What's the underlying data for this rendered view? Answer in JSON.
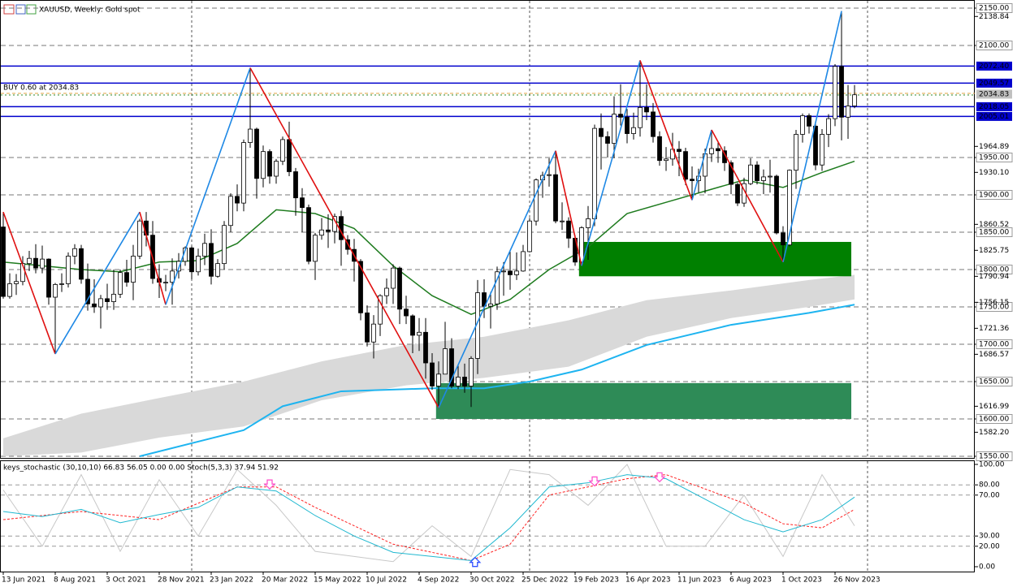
{
  "chart_data": [
    {
      "type": "candlestick",
      "title": "XAUUSD, Weekly:  Gold spot",
      "order_label": "BUY 0.60 at 2034.83",
      "xlim": [
        -0.5,
        149.5
      ],
      "ylim": [
        1550,
        2150
      ],
      "xticks": [
        {
          "value": 0,
          "label": "13 Jun 2021"
        },
        {
          "value": 8,
          "label": "8 Aug 2021"
        },
        {
          "value": 16,
          "label": "3 Oct 2021"
        },
        {
          "value": 24,
          "label": "28 Nov 2021"
        },
        {
          "value": 32,
          "label": "23 Jan 2022"
        },
        {
          "value": 40,
          "label": "20 Mar 2022"
        },
        {
          "value": 48,
          "label": "15 May 2022"
        },
        {
          "value": 56,
          "label": "10 Jul 2022"
        },
        {
          "value": 64,
          "label": "4 Sep 2022"
        },
        {
          "value": 72,
          "label": "30 Oct 2022"
        },
        {
          "value": 80,
          "label": "25 Dec 2022"
        },
        {
          "value": 88,
          "label": "19 Feb 2023"
        },
        {
          "value": 96,
          "label": "16 Apr 2023"
        },
        {
          "value": 104,
          "label": "11 Jun 2023"
        },
        {
          "value": 112,
          "label": "6 Aug 2023"
        },
        {
          "value": 120,
          "label": "1 Oct 2023"
        },
        {
          "value": 128,
          "label": "26 Nov 2023"
        }
      ],
      "yticks": [
        {
          "value": 2150,
          "label": "2150.00"
        },
        {
          "value": 2100,
          "label": "2100.00"
        },
        {
          "value": 1950,
          "label": "1950.00"
        },
        {
          "value": 1900,
          "label": "1900.00"
        },
        {
          "value": 1850,
          "label": "1850.00"
        },
        {
          "value": 1800,
          "label": "1800.00"
        },
        {
          "value": 1750,
          "label": "1750.00"
        },
        {
          "value": 1700,
          "label": "1700.00"
        },
        {
          "value": 1650,
          "label": "1650.00"
        },
        {
          "value": 1600,
          "label": "1600.00"
        },
        {
          "value": 1550,
          "label": "1550.00"
        }
      ],
      "scale_labels": [
        {
          "value": 2138.84,
          "label": "2138.84"
        },
        {
          "value": 1964.89,
          "label": "1964.89"
        },
        {
          "value": 1930.1,
          "label": "1930.10"
        },
        {
          "value": 1860.52,
          "label": "1860.52"
        },
        {
          "value": 1825.75,
          "label": "1825.75"
        },
        {
          "value": 1790.94,
          "label": "1790.94"
        },
        {
          "value": 1756.15,
          "label": "1756.15"
        },
        {
          "value": 1721.36,
          "label": "1721.36"
        },
        {
          "value": 1686.57,
          "label": "1686.57"
        },
        {
          "value": 1616.99,
          "label": "1616.99"
        },
        {
          "value": 1582.2,
          "label": "1582.20"
        }
      ],
      "grid": true,
      "separators": [
        29,
        81,
        133
      ],
      "levels": [
        {
          "value": 2072.4,
          "label": "2072.40",
          "color": "#0000cd"
        },
        {
          "value": 2049.57,
          "label": "2049.57",
          "color": "#0000cd"
        },
        {
          "value": 2018.05,
          "label": "2018.05",
          "color": "#0000cd"
        },
        {
          "value": 2005.01,
          "label": "2005.01",
          "color": "#0000cd"
        }
      ],
      "bid": {
        "value": 2034.83,
        "label": "2034.83",
        "color": "#e0a040"
      },
      "zones": [
        {
          "x": [
            88.6,
            130.5
          ],
          "y": [
            1791,
            1837
          ],
          "color": "#008000"
        },
        {
          "x": [
            66.6,
            130.5
          ],
          "y": [
            1600,
            1648
          ],
          "color": "#2e8b57"
        }
      ],
      "up_color": "#ffffff",
      "down_color": "#000000",
      "open": [
        1857,
        1764,
        1781,
        1784,
        1808,
        1815,
        1802,
        1814,
        1763,
        1780,
        1781,
        1818,
        1828,
        1787,
        1754,
        1750,
        1761,
        1757,
        1767,
        1796,
        1783,
        1818,
        1865,
        1846,
        1788,
        1783,
        1783,
        1798,
        1811,
        1829,
        1797,
        1818,
        1835,
        1791,
        1808,
        1859,
        1898,
        1889,
        1970,
        1988,
        1922,
        1958,
        1925,
        1945,
        1974,
        1931,
        1896,
        1883,
        1811,
        1846,
        1853,
        1851,
        1871,
        1840,
        1827,
        1811,
        1742,
        1703,
        1727,
        1765,
        1775,
        1802,
        1747,
        1738,
        1712,
        1716,
        1675,
        1644,
        1660,
        1694,
        1644,
        1656,
        1644,
        1681,
        1769,
        1751,
        1754,
        1797,
        1798,
        1793,
        1798,
        1824,
        1865,
        1920,
        1926,
        1927,
        1865,
        1865,
        1842,
        1810,
        1856,
        1868,
        1989,
        1978,
        1969,
        2008,
        2004,
        1982,
        1990,
        2017,
        2011,
        1978,
        1946,
        1948,
        1961,
        1958,
        1921,
        1919,
        1925,
        1955,
        1962,
        1959,
        1943,
        1914,
        1889,
        1915,
        1940,
        1919,
        1924,
        1925,
        1849,
        1833,
        1933,
        1981,
        2006,
        1992,
        1940,
        1981,
        2002,
        2072,
        2004,
        2019
      ],
      "high": [
        1877,
        1795,
        1794,
        1818,
        1825,
        1834,
        1832,
        1815,
        1782,
        1795,
        1823,
        1834,
        1833,
        1808,
        1787,
        1766,
        1781,
        1800,
        1800,
        1813,
        1833,
        1868,
        1877,
        1865,
        1807,
        1793,
        1815,
        1822,
        1831,
        1831,
        1828,
        1848,
        1854,
        1814,
        1865,
        1902,
        1914,
        1974,
        2070,
        1990,
        1966,
        1961,
        1948,
        1978,
        1998,
        1936,
        1909,
        1887,
        1849,
        1869,
        1874,
        1875,
        1879,
        1846,
        1841,
        1814,
        1752,
        1739,
        1767,
        1788,
        1807,
        1804,
        1765,
        1740,
        1735,
        1735,
        1688,
        1677,
        1730,
        1708,
        1672,
        1674,
        1684,
        1786,
        1787,
        1770,
        1804,
        1810,
        1824,
        1823,
        1833,
        1869,
        1922,
        1931,
        1949,
        1959,
        1890,
        1870,
        1846,
        1858,
        1885,
        1994,
        2009,
        1985,
        2032,
        2048,
        2015,
        2010,
        2080,
        2048,
        2023,
        1985,
        1964,
        1983,
        1972,
        1963,
        1938,
        1935,
        1962,
        1987,
        1972,
        1965,
        1946,
        1916,
        1923,
        1949,
        1945,
        1934,
        1947,
        1927,
        1858,
        1934,
        1987,
        2009,
        2009,
        1995,
        1988,
        2008,
        2075,
        2146,
        2047,
        2047
      ],
      "low": [
        1761,
        1761,
        1766,
        1779,
        1798,
        1795,
        1795,
        1753,
        1687,
        1770,
        1776,
        1807,
        1781,
        1745,
        1742,
        1721,
        1746,
        1746,
        1762,
        1777,
        1759,
        1814,
        1831,
        1781,
        1762,
        1771,
        1753,
        1788,
        1805,
        1787,
        1792,
        1806,
        1780,
        1789,
        1800,
        1850,
        1878,
        1878,
        1963,
        1895,
        1910,
        1915,
        1915,
        1940,
        1925,
        1872,
        1850,
        1807,
        1786,
        1840,
        1829,
        1835,
        1805,
        1820,
        1784,
        1732,
        1697,
        1681,
        1711,
        1754,
        1754,
        1727,
        1727,
        1688,
        1691,
        1654,
        1639,
        1615,
        1660,
        1641,
        1640,
        1635,
        1616,
        1660,
        1735,
        1721,
        1746,
        1765,
        1773,
        1786,
        1797,
        1823,
        1859,
        1896,
        1911,
        1862,
        1853,
        1829,
        1805,
        1805,
        1813,
        1858,
        1934,
        1950,
        1949,
        1993,
        1969,
        1974,
        1978,
        2000,
        1970,
        1939,
        1932,
        1939,
        1925,
        1913,
        1893,
        1903,
        1902,
        1944,
        1943,
        1932,
        1901,
        1885,
        1884,
        1913,
        1914,
        1901,
        1903,
        1847,
        1810,
        1831,
        1908,
        1970,
        1982,
        1933,
        1932,
        1964,
        1992,
        1973,
        1975,
        2016
      ],
      "close": [
        1764,
        1781,
        1784,
        1808,
        1815,
        1802,
        1814,
        1763,
        1780,
        1781,
        1818,
        1828,
        1787,
        1754,
        1750,
        1761,
        1757,
        1767,
        1796,
        1783,
        1818,
        1865,
        1846,
        1788,
        1783,
        1783,
        1798,
        1811,
        1829,
        1797,
        1818,
        1835,
        1791,
        1808,
        1859,
        1898,
        1889,
        1970,
        1988,
        1922,
        1958,
        1925,
        1945,
        1974,
        1931,
        1896,
        1883,
        1811,
        1846,
        1853,
        1851,
        1871,
        1840,
        1827,
        1811,
        1742,
        1703,
        1727,
        1765,
        1775,
        1802,
        1747,
        1738,
        1712,
        1716,
        1675,
        1644,
        1660,
        1694,
        1644,
        1656,
        1644,
        1681,
        1769,
        1751,
        1754,
        1797,
        1798,
        1793,
        1798,
        1824,
        1865,
        1920,
        1926,
        1927,
        1865,
        1865,
        1842,
        1810,
        1856,
        1868,
        1989,
        1978,
        1969,
        2008,
        2004,
        1982,
        1990,
        2017,
        2011,
        1978,
        1946,
        1948,
        1961,
        1958,
        1921,
        1919,
        1925,
        1955,
        1962,
        1959,
        1943,
        1914,
        1889,
        1915,
        1940,
        1919,
        1924,
        1925,
        1849,
        1833,
        1933,
        1981,
        2006,
        1992,
        1940,
        1981,
        2002,
        2072,
        2004,
        2019,
        2034
      ],
      "band": {
        "color": "#d9d9d9",
        "x": [
          0,
          12,
          24,
          37,
          49,
          62,
          74,
          87,
          99,
          112,
          124,
          131
        ],
        "upper": [
          1574,
          1607,
          1628,
          1650,
          1677,
          1699,
          1710,
          1732,
          1759,
          1772,
          1786,
          1793
        ],
        "lower": [
          1550,
          1555,
          1575,
          1590,
          1625,
          1645,
          1655,
          1670,
          1710,
          1735,
          1750,
          1760
        ]
      },
      "series": [
        {
          "color": "#1e7b1e",
          "width": 1.5,
          "x": [
            0,
            6,
            12,
            18,
            24,
            30,
            36,
            42,
            48,
            54,
            60,
            66,
            72,
            78,
            84,
            90,
            96,
            102,
            108,
            114,
            120,
            126,
            131
          ],
          "values": [
            1810,
            1805,
            1800,
            1797,
            1810,
            1812,
            1835,
            1880,
            1875,
            1855,
            1805,
            1765,
            1740,
            1760,
            1800,
            1830,
            1875,
            1890,
            1905,
            1920,
            1910,
            1930,
            1945
          ]
        },
        {
          "color": "#1eb4f0",
          "width": 2,
          "x": [
            21,
            37,
            43,
            52,
            66,
            74,
            81,
            89,
            99,
            112,
            124,
            131
          ],
          "values": [
            1550,
            1585,
            1617,
            1637,
            1641,
            1641,
            1650,
            1666,
            1699,
            1726,
            1742,
            1753
          ]
        }
      ],
      "zigzag": {
        "up_color": "#1e88e5",
        "down_color": "#e01010",
        "x": [
          0,
          8,
          21,
          25,
          38,
          67,
          85,
          89,
          98,
          106,
          109,
          120,
          129
        ],
        "values": [
          1877,
          1687,
          1877,
          1753,
          2070,
          1615,
          1959,
          1805,
          2080,
          1893,
          1987,
          1810,
          2146
        ]
      }
    },
    {
      "type": "line",
      "title": "keys_stochastic (30,10,10) 66.83 56.05 0.00 0.00 Stoch(5,3,3) 37.94 51.92",
      "xlim": [
        -0.5,
        149.5
      ],
      "ylim": [
        0,
        100
      ],
      "yticks": [
        {
          "value": 100,
          "label": "100.00"
        },
        {
          "value": 80,
          "label": "80.00"
        },
        {
          "value": 70,
          "label": "70.00"
        },
        {
          "value": 30,
          "label": "30.00"
        },
        {
          "value": 20,
          "label": "20.00"
        },
        {
          "value": 0,
          "label": "0.00"
        }
      ],
      "series": [
        {
          "color": "#c8c8c8",
          "dash": false,
          "x": [
            0,
            6,
            12,
            18,
            24,
            30,
            36,
            42,
            48,
            54,
            60,
            66,
            72,
            78,
            84,
            90,
            96,
            102,
            108,
            114,
            120,
            126,
            131
          ],
          "values": [
            75,
            20,
            90,
            15,
            85,
            30,
            95,
            60,
            15,
            10,
            5,
            40,
            10,
            95,
            90,
            60,
            100,
            20,
            20,
            70,
            10,
            90,
            40
          ]
        },
        {
          "color": "#ff2020",
          "dash": true,
          "x": [
            0,
            12,
            24,
            36,
            42,
            48,
            60,
            72,
            78,
            84,
            96,
            102,
            114,
            120,
            126,
            131
          ],
          "values": [
            46,
            54,
            46,
            78,
            78,
            58,
            22,
            6,
            22,
            70,
            86,
            90,
            62,
            42,
            38,
            56
          ]
        },
        {
          "color": "#20b8d0",
          "dash": false,
          "x": [
            0,
            6,
            12,
            18,
            24,
            30,
            36,
            42,
            48,
            54,
            60,
            66,
            72,
            78,
            84,
            90,
            96,
            102,
            108,
            114,
            120,
            126,
            131
          ],
          "values": [
            54,
            49,
            56,
            43,
            51,
            58,
            78,
            74,
            50,
            30,
            14,
            10,
            6,
            38,
            78,
            82,
            90,
            86,
            66,
            46,
            34,
            46,
            68
          ]
        }
      ],
      "markers": [
        {
          "x": 41,
          "value": 80,
          "dir": "down",
          "color": "#ff55cc"
        },
        {
          "x": 91,
          "value": 83,
          "dir": "down",
          "color": "#ff55cc"
        },
        {
          "x": 101,
          "value": 87,
          "dir": "down",
          "color": "#ff55cc"
        },
        {
          "x": 72.6,
          "value": 5,
          "dir": "up",
          "color": "#3050ff"
        }
      ]
    }
  ]
}
